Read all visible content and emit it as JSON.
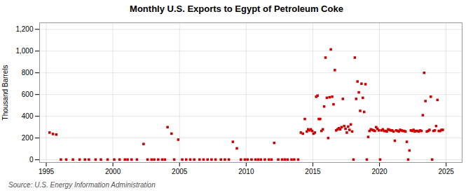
{
  "chart_data": {
    "type": "scatter",
    "title": "Monthly U.S. Exports to Egypt of Petroleum Coke",
    "ylabel": "Thousand Barrels",
    "source": "Source: U.S. Energy Information Administration",
    "color": "#cc0000",
    "marker": "square",
    "grid": true,
    "xlim": [
      1994.5,
      2026.2
    ],
    "ylim": [
      -25,
      1260
    ],
    "xticks": [
      1995,
      2000,
      2005,
      2010,
      2015,
      2020,
      2025
    ],
    "yticks": [
      0,
      200,
      400,
      600,
      800,
      {
        "value": 1000,
        "label": "1,000"
      },
      {
        "value": 1200,
        "label": "1,200"
      }
    ],
    "x": [
      1995.25,
      1995.5,
      1995.75,
      1996.1,
      1996.5,
      1997.0,
      1997.5,
      1997.9,
      1998.2,
      1998.7,
      1999.1,
      1999.6,
      2000.1,
      2000.5,
      2000.9,
      2001.1,
      2001.4,
      2001.8,
      2002.3,
      2002.6,
      2002.9,
      2003.1,
      2003.4,
      2003.7,
      2003.9,
      2004.1,
      2004.4,
      2004.6,
      2004.9,
      2005.2,
      2005.5,
      2005.8,
      2006.1,
      2006.5,
      2006.8,
      2007.1,
      2007.4,
      2007.7,
      2008.1,
      2008.4,
      2008.7,
      2009.0,
      2009.3,
      2009.6,
      2009.9,
      2010.1,
      2010.4,
      2010.7,
      2010.9,
      2011.1,
      2011.4,
      2011.7,
      2011.9,
      2012.1,
      2012.4,
      2012.7,
      2012.9,
      2013.1,
      2013.4,
      2013.6,
      2013.9,
      2014.1,
      2014.25,
      2014.4,
      2014.55,
      2014.65,
      2014.75,
      2014.85,
      2014.95,
      2015.05,
      2015.15,
      2015.25,
      2015.35,
      2015.45,
      2015.55,
      2015.65,
      2015.75,
      2015.85,
      2015.95,
      2016.05,
      2016.15,
      2016.25,
      2016.35,
      2016.45,
      2016.55,
      2016.65,
      2016.75,
      2016.85,
      2016.95,
      2017.05,
      2017.15,
      2017.25,
      2017.35,
      2017.45,
      2017.55,
      2017.65,
      2017.75,
      2017.85,
      2017.95,
      2018.05,
      2018.15,
      2018.25,
      2018.35,
      2018.45,
      2018.55,
      2018.65,
      2018.75,
      2018.85,
      2018.95,
      2019.05,
      2019.15,
      2019.25,
      2019.35,
      2019.45,
      2019.55,
      2019.65,
      2019.75,
      2019.85,
      2019.95,
      2020.05,
      2020.15,
      2020.25,
      2020.35,
      2020.45,
      2020.55,
      2020.65,
      2020.75,
      2020.85,
      2020.95,
      2021.05,
      2021.15,
      2021.25,
      2021.35,
      2021.45,
      2021.55,
      2021.65,
      2021.75,
      2021.85,
      2021.95,
      2022.05,
      2022.15,
      2022.25,
      2022.35,
      2022.45,
      2022.55,
      2022.65,
      2022.75,
      2022.85,
      2022.95,
      2023.05,
      2023.15,
      2023.25,
      2023.35,
      2023.45,
      2023.55,
      2023.65,
      2023.75,
      2023.85,
      2023.95,
      2024.05,
      2024.15,
      2024.25,
      2024.35,
      2024.45,
      2024.55,
      2024.65,
      2024.75
    ],
    "values": [
      250,
      237,
      232,
      2,
      2,
      2,
      2,
      2,
      2,
      2,
      2,
      2,
      2,
      2,
      2,
      2,
      2,
      2,
      145,
      2,
      2,
      2,
      2,
      2,
      2,
      300,
      240,
      2,
      185,
      2,
      2,
      2,
      2,
      2,
      2,
      2,
      2,
      2,
      2,
      2,
      2,
      165,
      105,
      2,
      2,
      2,
      2,
      2,
      2,
      2,
      2,
      2,
      2,
      155,
      2,
      2,
      2,
      2,
      2,
      2,
      2,
      250,
      240,
      375,
      260,
      280,
      270,
      280,
      265,
      240,
      250,
      580,
      590,
      375,
      375,
      265,
      280,
      490,
      940,
      570,
      200,
      575,
      1015,
      580,
      510,
      825,
      270,
      280,
      290,
      280,
      300,
      560,
      310,
      285,
      250,
      305,
      275,
      325,
      260,
      2,
      940,
      560,
      720,
      620,
      450,
      700,
      570,
      440,
      695,
      2,
      210,
      265,
      280,
      275,
      270,
      265,
      300,
      285,
      270,
      2,
      270,
      280,
      265,
      265,
      260,
      280,
      275,
      270,
      270,
      260,
      175,
      270,
      265,
      260,
      275,
      270,
      265,
      265,
      260,
      165,
      2,
      85,
      270,
      265,
      275,
      260,
      265,
      265,
      260,
      270,
      265,
      410,
      800,
      540,
      260,
      265,
      275,
      580,
      2,
      265,
      270,
      310,
      550,
      265,
      265,
      275,
      275
    ]
  }
}
